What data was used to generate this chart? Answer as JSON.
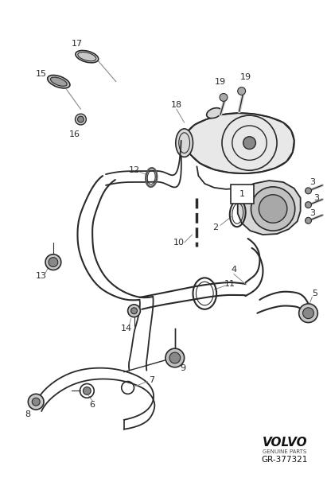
{
  "background_color": "#ffffff",
  "line_color": "#2a2a2a",
  "volvo_text": "VOLVO",
  "genuine_parts": "GENUINE PARTS",
  "part_number": "GR-377321",
  "fig_width": 4.11,
  "fig_height": 6.01,
  "dpi": 100
}
